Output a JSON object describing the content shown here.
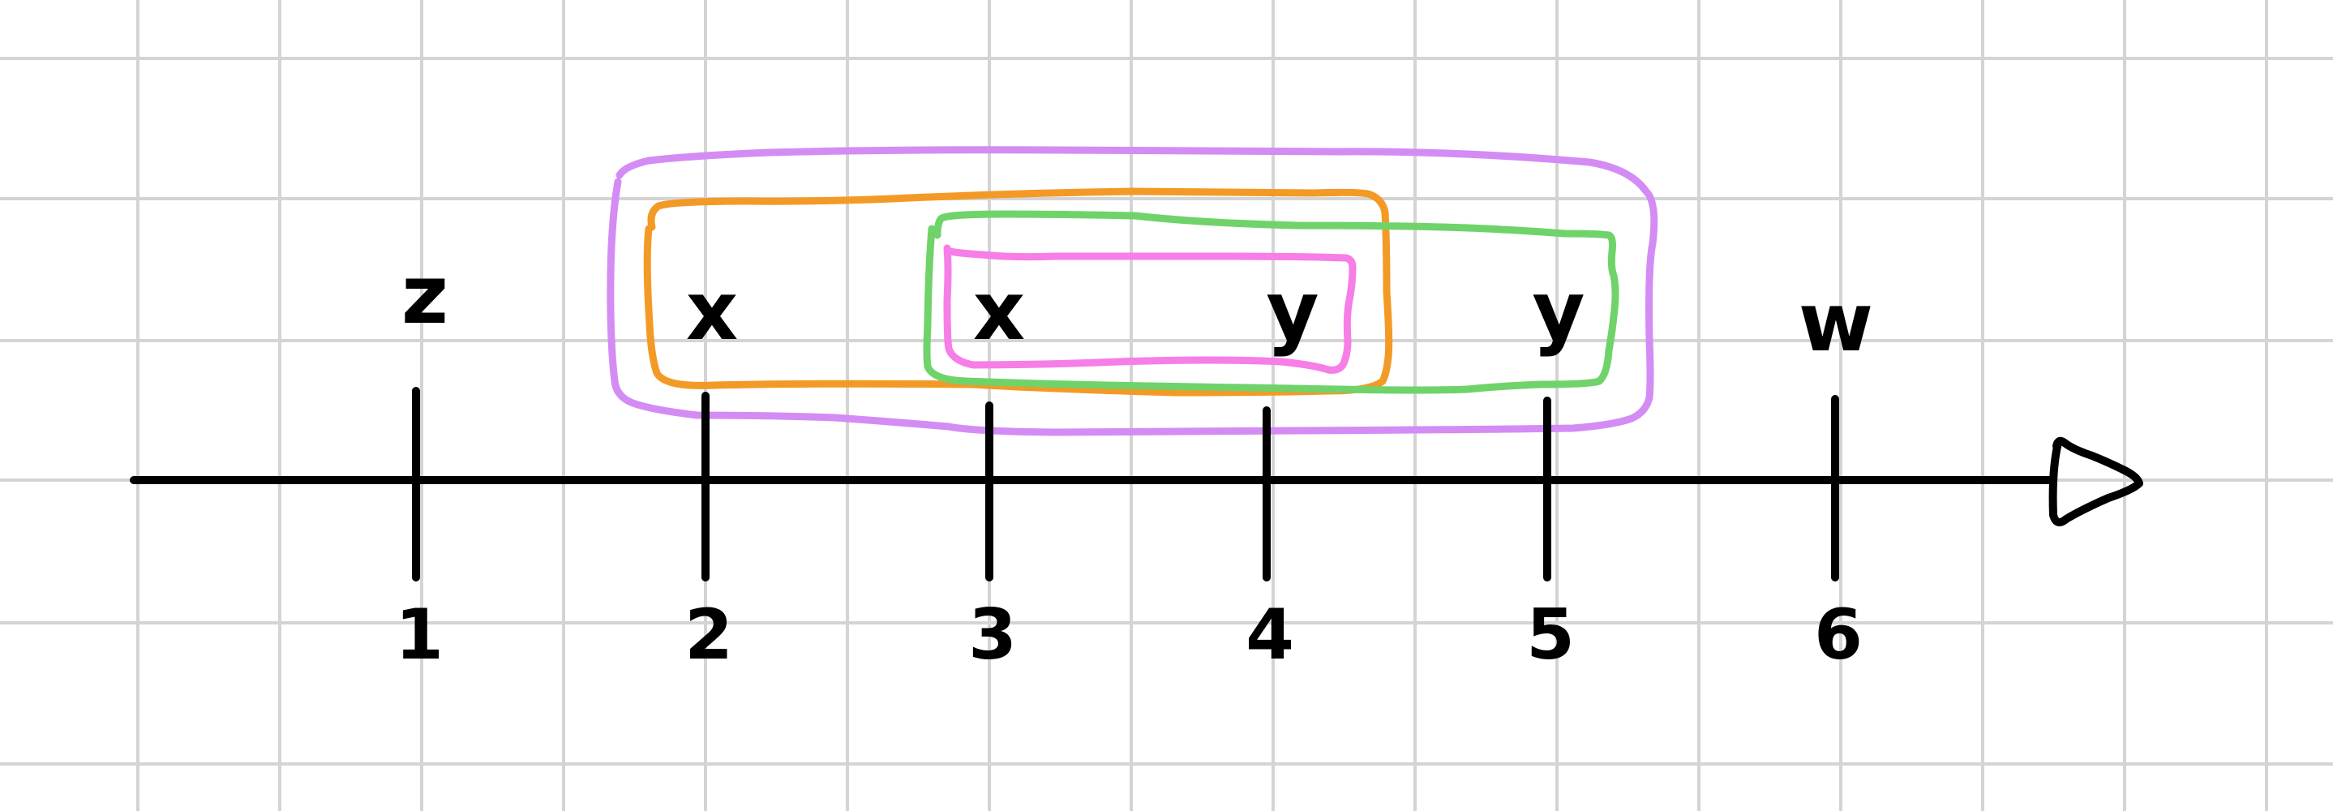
{
  "number_line": {
    "ticks": [
      "1",
      "2",
      "3",
      "4",
      "5",
      "6"
    ]
  },
  "variables": [
    {
      "label": "z",
      "tick": "1"
    },
    {
      "label": "x",
      "tick": "2"
    },
    {
      "label": "x",
      "tick": "3"
    },
    {
      "label": "y",
      "tick": "4"
    },
    {
      "label": "y",
      "tick": "5"
    },
    {
      "label": "w",
      "tick": "6"
    }
  ],
  "groupings": [
    {
      "id": "purple",
      "color": "#d48cf5",
      "from": "2",
      "to": "5"
    },
    {
      "id": "orange",
      "color": "#f39a26",
      "from": "2",
      "to": "4"
    },
    {
      "id": "green",
      "color": "#6fd36a",
      "from": "3",
      "to": "5"
    },
    {
      "id": "pink",
      "color": "#f67ee6",
      "from": "3",
      "to": "4"
    }
  ],
  "colors": {
    "grid": "#d4d4d4",
    "ink": "#000000",
    "background": "#ffffff"
  }
}
